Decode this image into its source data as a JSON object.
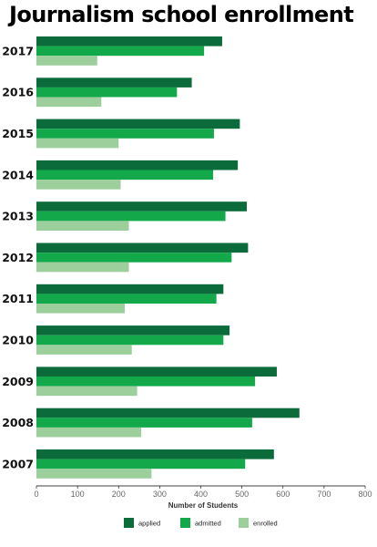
{
  "chart_data": {
    "type": "bar",
    "orientation": "horizontal",
    "title": "Journalism school enrollment",
    "xlabel": "Number of Students",
    "ylabel": "",
    "xlim": [
      0,
      800
    ],
    "xticks": [
      0,
      100,
      200,
      300,
      400,
      500,
      600,
      700,
      800
    ],
    "categories": [
      "2017",
      "2016",
      "2015",
      "2014",
      "2013",
      "2012",
      "2011",
      "2010",
      "2009",
      "2008",
      "2007"
    ],
    "series": [
      {
        "name": "applied",
        "color": "#0b6b3a",
        "values": [
          452,
          378,
          495,
          490,
          512,
          515,
          455,
          470,
          585,
          640,
          578
        ]
      },
      {
        "name": "admitted",
        "color": "#13a84a",
        "values": [
          408,
          342,
          432,
          430,
          460,
          475,
          438,
          455,
          532,
          525,
          508
        ]
      },
      {
        "name": "enrolled",
        "color": "#9ccf9c",
        "values": [
          148,
          158,
          200,
          205,
          225,
          225,
          215,
          232,
          245,
          255,
          280
        ]
      }
    ],
    "grid": false,
    "legend_position": "bottom"
  }
}
